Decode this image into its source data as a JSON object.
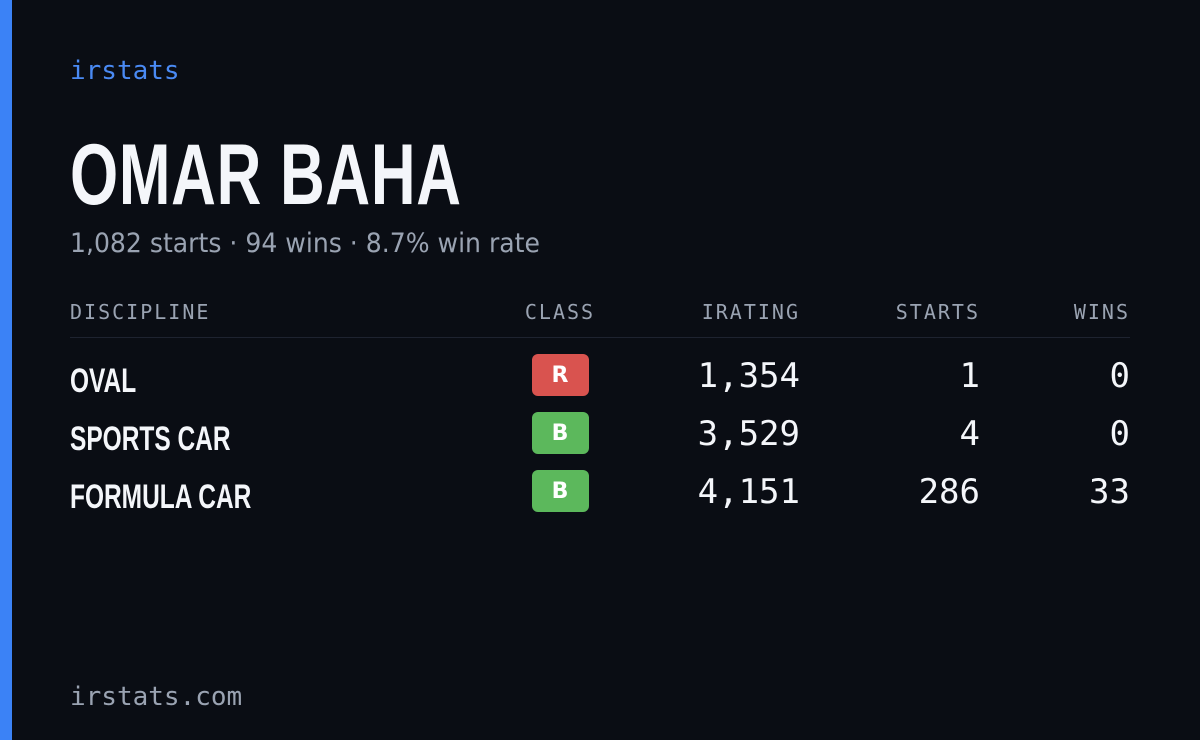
{
  "brand": "irstats",
  "driver": {
    "name": "OMAR BAHA",
    "summary": "1,082 starts · 94 wins · 8.7% win rate"
  },
  "table": {
    "headers": [
      "DISCIPLINE",
      "CLASS",
      "IRATING",
      "STARTS",
      "WINS"
    ],
    "rows": [
      {
        "discipline": "OVAL",
        "class": "R",
        "class_color": "#d9534f",
        "irating": "1,354",
        "starts": "1",
        "wins": "0"
      },
      {
        "discipline": "SPORTS CAR",
        "class": "B",
        "class_color": "#5cb85c",
        "irating": "3,529",
        "starts": "4",
        "wins": "0"
      },
      {
        "discipline": "FORMULA CAR",
        "class": "B",
        "class_color": "#5cb85c",
        "irating": "4,151",
        "starts": "286",
        "wins": "33"
      }
    ]
  },
  "footer": "irstats.com"
}
